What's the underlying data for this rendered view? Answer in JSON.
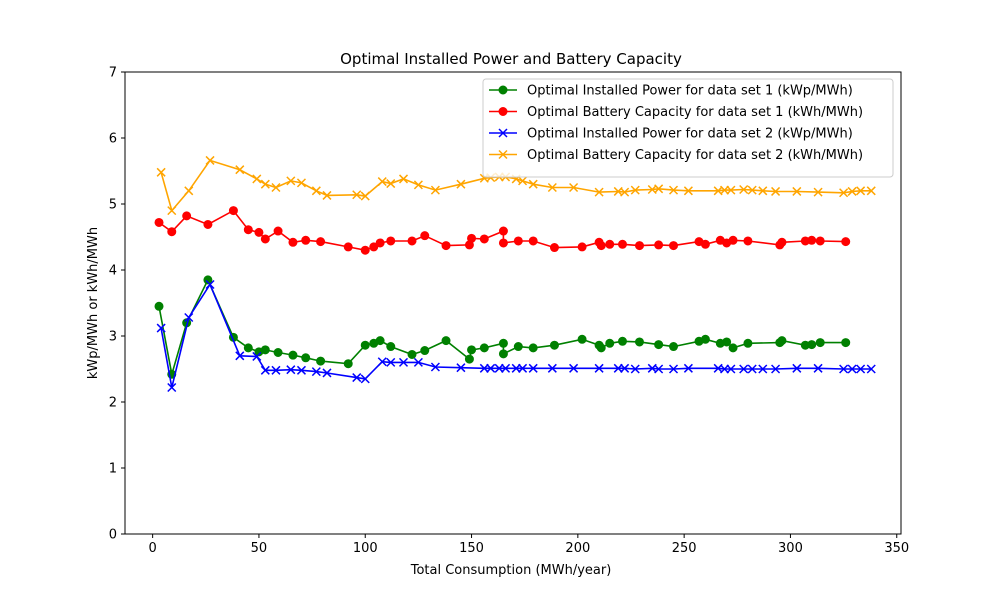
{
  "chart_data": {
    "type": "line",
    "title": "Optimal Installed Power and Battery Capacity",
    "xlabel": "Total Consumption (MWh/year)",
    "ylabel": "kWp/MWh or kWh/MWh",
    "xlim": [
      -13,
      352
    ],
    "ylim": [
      0,
      7
    ],
    "xticks": [
      0,
      50,
      100,
      150,
      200,
      250,
      300,
      350
    ],
    "yticks": [
      0,
      1,
      2,
      3,
      4,
      5,
      6,
      7
    ],
    "grid": false,
    "legend_position": "upper right",
    "series": [
      {
        "name": "Optimal Installed Power for data set 1 (kWp/MWh)",
        "color": "#008000",
        "marker": "circle",
        "x": [
          3,
          9,
          16,
          26,
          38,
          45,
          50,
          53,
          59,
          66,
          72,
          79,
          92,
          100,
          104,
          107,
          112,
          122,
          128,
          138,
          149,
          150,
          156,
          165,
          165,
          172,
          179,
          189,
          202,
          210,
          211,
          215,
          221,
          229,
          238,
          245,
          257,
          260,
          267,
          270,
          273,
          280,
          295,
          296,
          307,
          310,
          314,
          326
        ],
        "y": [
          3.45,
          2.42,
          3.2,
          3.85,
          2.98,
          2.82,
          2.76,
          2.79,
          2.75,
          2.71,
          2.67,
          2.62,
          2.58,
          2.86,
          2.89,
          2.93,
          2.84,
          2.72,
          2.78,
          2.93,
          2.65,
          2.79,
          2.82,
          2.89,
          2.73,
          2.84,
          2.82,
          2.86,
          2.95,
          2.86,
          2.82,
          2.89,
          2.92,
          2.91,
          2.87,
          2.84,
          2.92,
          2.95,
          2.89,
          2.91,
          2.82,
          2.89,
          2.9,
          2.93,
          2.86,
          2.87,
          2.9,
          2.9
        ]
      },
      {
        "name": "Optimal Battery Capacity for data set 1 (kWh/MWh)",
        "color": "#ff0000",
        "marker": "circle",
        "x": [
          3,
          9,
          16,
          26,
          38,
          45,
          50,
          53,
          59,
          66,
          72,
          79,
          92,
          100,
          104,
          107,
          112,
          122,
          128,
          138,
          149,
          150,
          156,
          165,
          165,
          172,
          179,
          189,
          202,
          210,
          211,
          215,
          221,
          229,
          238,
          245,
          257,
          260,
          267,
          270,
          273,
          280,
          295,
          296,
          307,
          310,
          314,
          326
        ],
        "y": [
          4.72,
          4.58,
          4.82,
          4.69,
          4.9,
          4.61,
          4.57,
          4.47,
          4.59,
          4.42,
          4.45,
          4.43,
          4.35,
          4.3,
          4.35,
          4.41,
          4.44,
          4.44,
          4.52,
          4.37,
          4.38,
          4.48,
          4.47,
          4.59,
          4.41,
          4.44,
          4.44,
          4.34,
          4.35,
          4.42,
          4.37,
          4.39,
          4.39,
          4.37,
          4.38,
          4.37,
          4.43,
          4.39,
          4.45,
          4.41,
          4.45,
          4.44,
          4.38,
          4.42,
          4.44,
          4.45,
          4.44,
          4.43
        ]
      },
      {
        "name": "Optimal Installed Power for data set 2 (kWp/MWh)",
        "color": "#0000ff",
        "marker": "x",
        "x": [
          4,
          9,
          17,
          27,
          41,
          49,
          53,
          58,
          65,
          70,
          77,
          82,
          96,
          100,
          108,
          112,
          118,
          125,
          133,
          145,
          156,
          159,
          163,
          166,
          171,
          174,
          179,
          188,
          198,
          210,
          219,
          222,
          227,
          235,
          238,
          245,
          252,
          266,
          269,
          272,
          278,
          282,
          287,
          293,
          303,
          313,
          325,
          329,
          333,
          338
        ],
        "y": [
          3.12,
          2.22,
          3.28,
          3.78,
          2.7,
          2.69,
          2.48,
          2.48,
          2.49,
          2.48,
          2.46,
          2.44,
          2.37,
          2.35,
          2.61,
          2.6,
          2.6,
          2.6,
          2.53,
          2.52,
          2.51,
          2.51,
          2.51,
          2.51,
          2.51,
          2.51,
          2.51,
          2.51,
          2.51,
          2.51,
          2.51,
          2.51,
          2.5,
          2.51,
          2.5,
          2.5,
          2.51,
          2.51,
          2.5,
          2.5,
          2.5,
          2.5,
          2.5,
          2.5,
          2.51,
          2.51,
          2.5,
          2.5,
          2.5,
          2.5
        ]
      },
      {
        "name": "Optimal Battery Capacity for data set 2 (kWh/MWh)",
        "color": "#ffa500",
        "marker": "x",
        "x": [
          4,
          9,
          17,
          27,
          41,
          49,
          53,
          58,
          65,
          70,
          77,
          82,
          96,
          100,
          108,
          112,
          118,
          125,
          133,
          145,
          156,
          159,
          163,
          166,
          171,
          174,
          179,
          188,
          198,
          210,
          219,
          222,
          227,
          235,
          238,
          245,
          252,
          266,
          269,
          272,
          278,
          282,
          287,
          293,
          303,
          313,
          325,
          329,
          333,
          338
        ],
        "y": [
          5.48,
          4.9,
          5.2,
          5.66,
          5.52,
          5.38,
          5.3,
          5.25,
          5.35,
          5.32,
          5.2,
          5.13,
          5.14,
          5.12,
          5.34,
          5.31,
          5.38,
          5.29,
          5.21,
          5.3,
          5.39,
          5.4,
          5.41,
          5.41,
          5.38,
          5.35,
          5.3,
          5.25,
          5.25,
          5.18,
          5.19,
          5.18,
          5.21,
          5.22,
          5.23,
          5.21,
          5.2,
          5.2,
          5.21,
          5.21,
          5.22,
          5.21,
          5.2,
          5.19,
          5.19,
          5.18,
          5.17,
          5.19,
          5.2,
          5.2
        ]
      }
    ]
  }
}
